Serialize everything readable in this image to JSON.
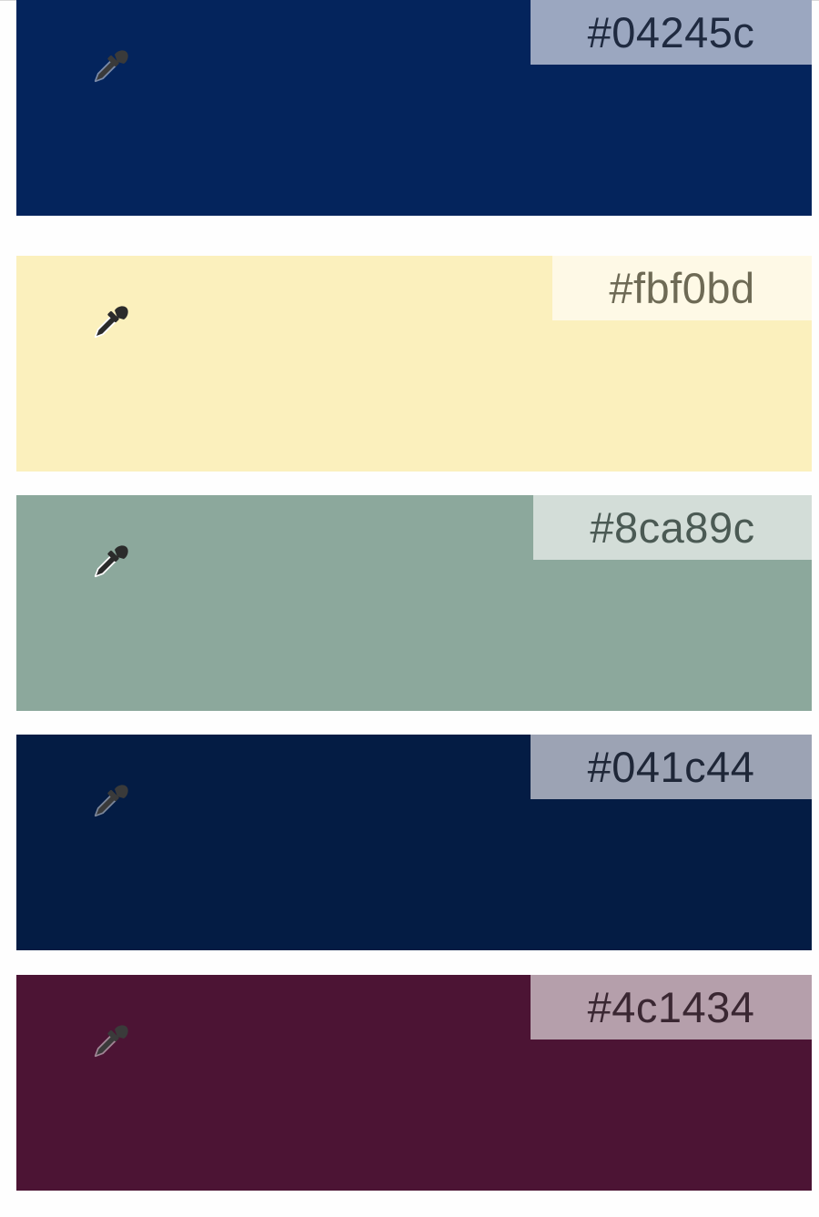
{
  "palette": [
    {
      "hex": "#fbf0bd",
      "label": "#fbf0bd",
      "tag_bg": "#fef9e6",
      "text_color": "#6e6a55",
      "icon": "eyedropper-icon",
      "icon_color": "#2b2b2b",
      "icon_outline": "#ffffff"
    },
    {
      "hex": "#8ca89c",
      "label": "#8ca89c",
      "tag_bg": "#d3ddd8",
      "text_color": "#4b5a54",
      "icon": "eyedropper-icon",
      "icon_color": "#2b2b2b",
      "icon_outline": "#ffffff"
    },
    {
      "hex": "#041c44",
      "label": "#041c44",
      "tag_bg": "#9ca3b4",
      "text_color": "#1f2738",
      "icon": "eyedropper-icon",
      "icon_color": "#3a3a3a",
      "icon_outline": "#7a8599"
    },
    {
      "hex": "#4c1434",
      "label": "#4c1434",
      "tag_bg": "#b59fab",
      "text_color": "#3a2732",
      "icon": "eyedropper-icon",
      "icon_color": "#3a3a3a",
      "icon_outline": "#a08595"
    },
    {
      "hex": "#04245c",
      "label": "#04245c",
      "tag_bg": "#9ba7c0",
      "text_color": "#1f2a40",
      "icon": "eyedropper-icon",
      "icon_color": "#3a3a3a",
      "icon_outline": "#7a8aa8"
    }
  ]
}
